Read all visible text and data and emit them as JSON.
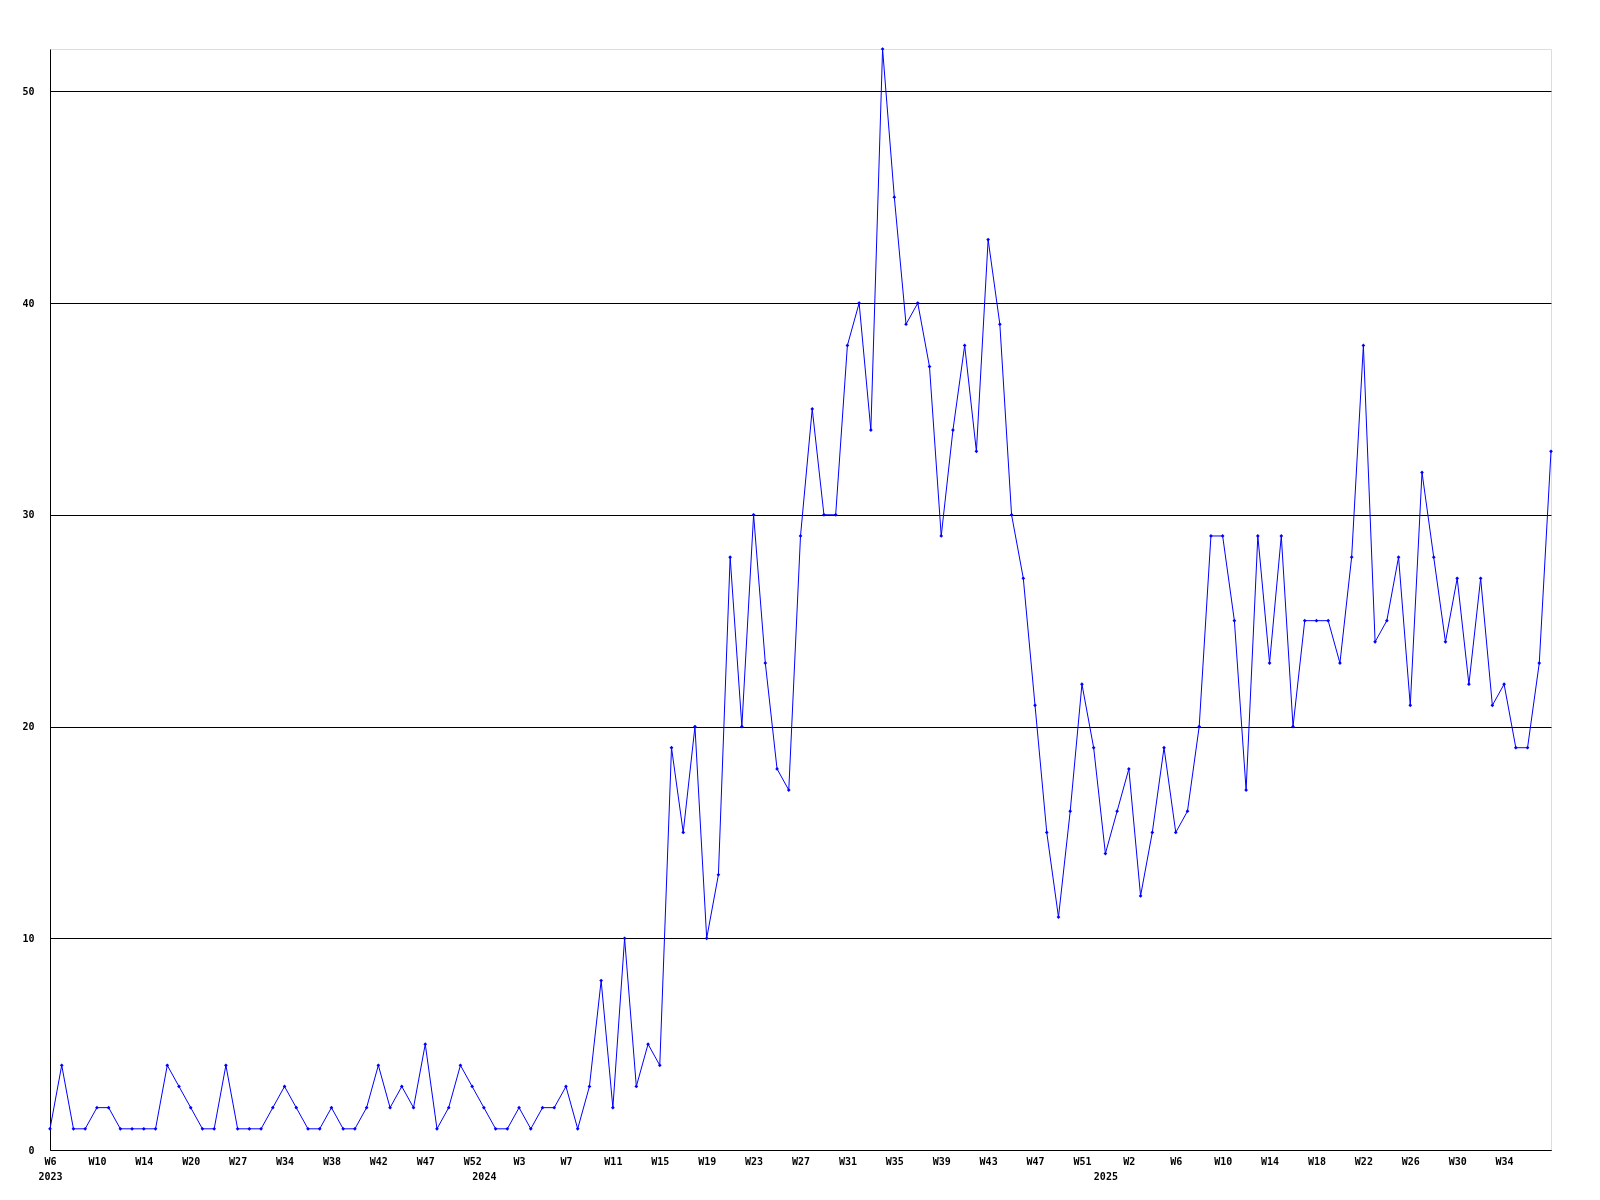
{
  "chart_data": {
    "type": "line",
    "categories": [
      "W6\n2023",
      null,
      null,
      null,
      "W10",
      null,
      null,
      null,
      "W14",
      null,
      null,
      null,
      "W20",
      null,
      null,
      null,
      "W27",
      null,
      null,
      null,
      "W34",
      null,
      null,
      null,
      "W38",
      null,
      null,
      null,
      "W42",
      null,
      null,
      null,
      "W47",
      null,
      null,
      null,
      "W52",
      "\n2024",
      null,
      null,
      "W3",
      null,
      null,
      null,
      "W7",
      null,
      null,
      null,
      "W11",
      null,
      null,
      null,
      "W15",
      null,
      null,
      null,
      "W19",
      null,
      null,
      null,
      "W23",
      null,
      null,
      null,
      "W27",
      null,
      null,
      null,
      "W31",
      null,
      null,
      null,
      "W35",
      null,
      null,
      null,
      "W39",
      null,
      null,
      null,
      "W43",
      null,
      null,
      null,
      "W47",
      null,
      null,
      null,
      "W51",
      null,
      "\n2025",
      null,
      "W2",
      null,
      null,
      null,
      "W6",
      null,
      null,
      null,
      "W10",
      null,
      null,
      null,
      "W14",
      null,
      null,
      null,
      "W18",
      null,
      null,
      null,
      "W22",
      null,
      null,
      null,
      "W26",
      null,
      null,
      null,
      "W30",
      null,
      null,
      null,
      "W34",
      null,
      null,
      null,
      null
    ],
    "series": [
      {
        "color": "#0000ff",
        "values": [
          1,
          4,
          1,
          1,
          2,
          2,
          1,
          1,
          1,
          1,
          4,
          3,
          2,
          1,
          1,
          4,
          1,
          1,
          1,
          2,
          3,
          2,
          1,
          1,
          2,
          1,
          1,
          2,
          4,
          2,
          3,
          2,
          5,
          1,
          2,
          4,
          3,
          2,
          1,
          1,
          2,
          1,
          2,
          2,
          3,
          1,
          3,
          8,
          2,
          10,
          3,
          5,
          4,
          19,
          15,
          20,
          10,
          13,
          28,
          20,
          30,
          23,
          18,
          17,
          29,
          35,
          30,
          30,
          38,
          40,
          34,
          52,
          45,
          39,
          40,
          37,
          29,
          34,
          38,
          33,
          43,
          39,
          30,
          27,
          21,
          15,
          11,
          16,
          22,
          19,
          14,
          16,
          18,
          12,
          15,
          19,
          15,
          16,
          20,
          29,
          29,
          25,
          17,
          29,
          23,
          29,
          20,
          25,
          25,
          25,
          23,
          28,
          38,
          24,
          25,
          28,
          21,
          32,
          28,
          24,
          27,
          22,
          27,
          21,
          22,
          19,
          19,
          23,
          33
        ]
      }
    ],
    "ylim": [
      0,
      52
    ],
    "yticks": [
      0,
      10,
      20,
      30,
      40,
      50
    ],
    "grid": "y",
    "marker": "diamond",
    "line_style": "solid",
    "legend": false
  }
}
